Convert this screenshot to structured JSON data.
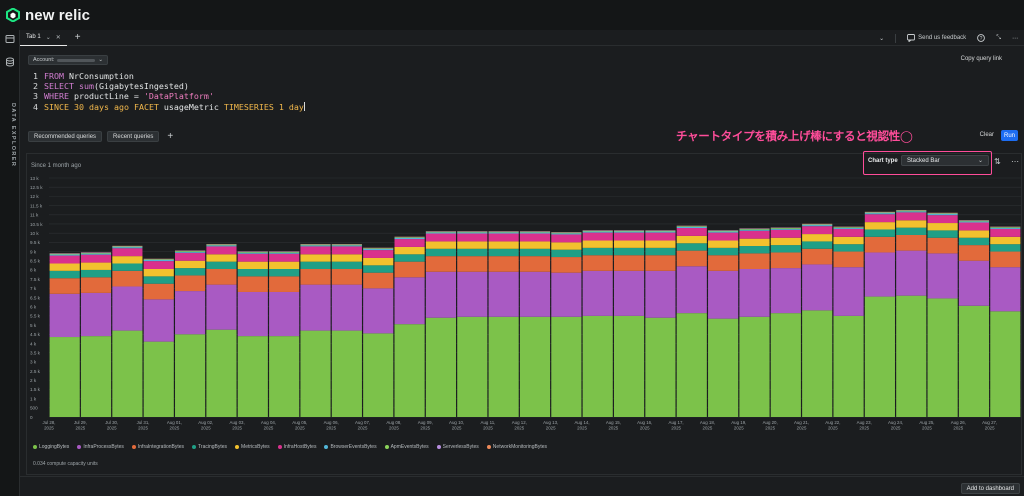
{
  "brand": {
    "name": "new relic"
  },
  "rail": {
    "label": "DATA EXPLORER"
  },
  "tabbar": {
    "active_tab": "Tab 1",
    "feedback_label": "Send us feedback"
  },
  "query": {
    "account_label": "Account:",
    "copy_link_label": "Copy query link",
    "lines": [
      [
        {
          "t": "kw",
          "v": "FROM"
        },
        {
          "t": "txt",
          "v": " NrConsumption"
        }
      ],
      [
        {
          "t": "kw",
          "v": "SELECT"
        },
        {
          "t": "txt",
          "v": " "
        },
        {
          "t": "fn",
          "v": "sum"
        },
        {
          "t": "txt",
          "v": "(GigabytesIngested)"
        }
      ],
      [
        {
          "t": "kw",
          "v": "WHERE"
        },
        {
          "t": "txt",
          "v": " productLine = "
        },
        {
          "t": "str",
          "v": "'DataPlatform'"
        }
      ],
      [
        {
          "t": "kwa",
          "v": "SINCE"
        },
        {
          "t": "txt",
          "v": " "
        },
        {
          "t": "num",
          "v": "30"
        },
        {
          "t": "txt",
          "v": " "
        },
        {
          "t": "kwa",
          "v": "days ago"
        },
        {
          "t": "txt",
          "v": " "
        },
        {
          "t": "kwa",
          "v": "FACET"
        },
        {
          "t": "txt",
          "v": " usageMetric "
        },
        {
          "t": "kwa",
          "v": "TIMESERIES"
        },
        {
          "t": "txt",
          "v": " "
        },
        {
          "t": "num",
          "v": "1"
        },
        {
          "t": "txt",
          "v": " "
        },
        {
          "t": "kwa",
          "v": "day"
        }
      ]
    ],
    "recommended_label": "Recommended queries",
    "recent_label": "Recent queries",
    "clear_label": "Clear",
    "run_label": "Run"
  },
  "annotation": "チャートタイプを積み上げ棒にすると視認性◯",
  "chart_card": {
    "since_label": "Since 1 month ago",
    "chart_type_label": "Chart type",
    "chart_type_value": "Stacked Bar",
    "compute_units": "0.034 compute capacity units"
  },
  "footer": {
    "add_dashboard_label": "Add to dashboard"
  },
  "chart_data": {
    "type": "bar",
    "stacked": true,
    "grid": true,
    "legend_position": "bottom",
    "y_ticks": [
      "0",
      "500",
      "1 k",
      "1.5 k",
      "2 k",
      "2.5 k",
      "3 k",
      "3.5 k",
      "4 k",
      "4.5 k",
      "5 k",
      "5.5 k",
      "6 k",
      "6.5 k",
      "7 k",
      "7.5 k",
      "8 k",
      "8.5 k",
      "9 k",
      "9.5 k",
      "10 k",
      "10.5 k",
      "11 k",
      "11.5 k",
      "12 k",
      "12.5 k",
      "13 k"
    ],
    "ylim": [
      0,
      13000
    ],
    "categories": [
      "Jul 28, 2025",
      "Jul 29, 2025",
      "Jul 30, 2025",
      "Jul 31, 2025",
      "Aug 01, 2025",
      "Aug 02, 2025",
      "Aug 03, 2025",
      "Aug 04, 2025",
      "Aug 05, 2025",
      "Aug 06, 2025",
      "Aug 07, 2025",
      "Aug 08, 2025",
      "Aug 09, 2025",
      "Aug 10, 2025",
      "Aug 11, 2025",
      "Aug 12, 2025",
      "Aug 13, 2025",
      "Aug 14, 2025",
      "Aug 15, 2025",
      "Aug 16, 2025",
      "Aug 17, 2025",
      "Aug 18, 2025",
      "Aug 19, 2025",
      "Aug 20, 2025",
      "Aug 21, 2025",
      "Aug 22, 2025",
      "Aug 23, 2025",
      "Aug 24, 2025",
      "Aug 25, 2025",
      "Aug 26, 2025",
      "Aug 27, 2025"
    ],
    "series": [
      {
        "name": "LoggingBytes",
        "color": "#7cc24a",
        "values": [
          4350,
          4400,
          4700,
          4100,
          4500,
          4750,
          4400,
          4400,
          4700,
          4700,
          4550,
          5050,
          5400,
          5450,
          5450,
          5450,
          5450,
          5500,
          5500,
          5400,
          5650,
          5350,
          5450,
          5650,
          5800,
          5500,
          6550,
          6600,
          6450,
          6050,
          5750
        ]
      },
      {
        "name": "InfraProcessBytes",
        "color": "#a95ac3",
        "values": [
          2350,
          2350,
          2400,
          2300,
          2350,
          2450,
          2400,
          2400,
          2500,
          2500,
          2450,
          2550,
          2500,
          2450,
          2450,
          2450,
          2400,
          2450,
          2450,
          2550,
          2550,
          2600,
          2600,
          2450,
          2500,
          2650,
          2400,
          2450,
          2450,
          2450,
          2400
        ]
      },
      {
        "name": "InfraIntegrationBytes",
        "color": "#e26a3b",
        "values": [
          850,
          850,
          850,
          850,
          850,
          850,
          850,
          850,
          850,
          850,
          850,
          850,
          850,
          850,
          850,
          850,
          850,
          850,
          850,
          850,
          850,
          850,
          850,
          850,
          850,
          850,
          850,
          850,
          850,
          850,
          850
        ]
      },
      {
        "name": "TracingBytes",
        "color": "#1f9f86",
        "values": [
          400,
          400,
          400,
          400,
          400,
          400,
          400,
          400,
          400,
          400,
          400,
          400,
          400,
          400,
          400,
          400,
          400,
          400,
          400,
          400,
          400,
          400,
          400,
          400,
          400,
          400,
          400,
          400,
          400,
          400,
          400
        ]
      },
      {
        "name": "MetricsBytes",
        "color": "#f2c12e",
        "values": [
          400,
          400,
          400,
          400,
          400,
          400,
          400,
          400,
          400,
          400,
          400,
          400,
          400,
          400,
          400,
          400,
          400,
          400,
          400,
          400,
          400,
          400,
          400,
          400,
          400,
          400,
          400,
          400,
          400,
          400,
          400
        ]
      },
      {
        "name": "InfraHostBytes",
        "color": "#d9318d",
        "values": [
          430,
          430,
          430,
          430,
          430,
          430,
          430,
          430,
          430,
          430,
          430,
          430,
          430,
          430,
          430,
          430,
          430,
          430,
          430,
          430,
          430,
          430,
          430,
          430,
          430,
          430,
          430,
          430,
          430,
          430,
          430
        ]
      },
      {
        "name": "BrowserEventsBytes",
        "color": "#52b6d8",
        "values": [
          60,
          60,
          60,
          60,
          60,
          60,
          60,
          60,
          60,
          60,
          60,
          60,
          60,
          60,
          60,
          60,
          60,
          60,
          60,
          60,
          60,
          60,
          60,
          60,
          60,
          60,
          60,
          60,
          60,
          60,
          60
        ]
      },
      {
        "name": "ApmEventsBytes",
        "color": "#8bd35a",
        "values": [
          40,
          40,
          40,
          40,
          40,
          40,
          40,
          40,
          40,
          40,
          40,
          40,
          40,
          40,
          40,
          40,
          40,
          40,
          40,
          40,
          40,
          40,
          40,
          40,
          40,
          40,
          40,
          40,
          40,
          40,
          40
        ]
      },
      {
        "name": "ServerlessBytes",
        "color": "#b88ee0",
        "values": [
          20,
          20,
          20,
          20,
          20,
          20,
          20,
          20,
          20,
          20,
          20,
          20,
          20,
          20,
          20,
          20,
          20,
          20,
          20,
          20,
          20,
          20,
          20,
          20,
          20,
          20,
          20,
          20,
          20,
          20,
          20
        ]
      },
      {
        "name": "NetworkMonitoringBytes",
        "color": "#ee8a5a",
        "values": [
          10,
          10,
          10,
          10,
          10,
          10,
          10,
          10,
          10,
          10,
          10,
          10,
          10,
          10,
          10,
          10,
          10,
          10,
          10,
          10,
          10,
          10,
          10,
          10,
          10,
          10,
          10,
          10,
          10,
          10,
          10
        ]
      }
    ]
  }
}
